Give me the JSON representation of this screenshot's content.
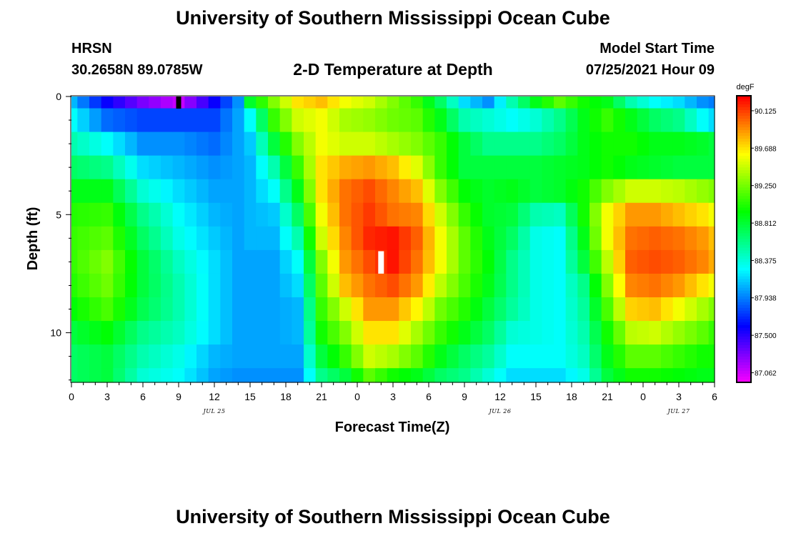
{
  "header": {
    "title_top": "University of Southern Mississippi Ocean Cube",
    "title_bottom": "University of Southern Mississippi Ocean Cube",
    "station_name": "HRSN",
    "station_coords": "30.2658N  89.0785W",
    "chart_title": "2-D Temperature at Depth",
    "model_start_label": "Model Start Time",
    "model_start_value": "07/25/2021 Hour 09"
  },
  "chart_data": {
    "type": "heatmap",
    "title": "2-D Temperature at Depth",
    "xlabel": "Forecast Time(Z)",
    "ylabel": "Depth (ft)",
    "colorbar_label": "degF",
    "x_hours": [
      0,
      1,
      2,
      3,
      4,
      5,
      6,
      7,
      8,
      9,
      10,
      11,
      12,
      13,
      14,
      15,
      16,
      17,
      18,
      19,
      20,
      21,
      22,
      23,
      24,
      25,
      26,
      27,
      28,
      29,
      30,
      31,
      32,
      33,
      34,
      35,
      36,
      37,
      38,
      39,
      40,
      41,
      42,
      43,
      44,
      45,
      46,
      47,
      48,
      49,
      50,
      51,
      52,
      53,
      54
    ],
    "x_tick_labels": [
      "0",
      "3",
      "6",
      "9",
      "12",
      "15",
      "18",
      "21",
      "0",
      "3",
      "6",
      "9",
      "12",
      "15",
      "18",
      "21",
      "0",
      "3",
      "6"
    ],
    "date_labels": [
      {
        "text": "JUL 25",
        "hour": 12
      },
      {
        "text": "JUL 26",
        "hour": 36
      },
      {
        "text": "JUL 27",
        "hour": 51
      }
    ],
    "y_depth_ft": [
      0,
      1,
      2,
      3,
      4,
      5,
      6,
      7,
      8,
      9,
      10,
      11,
      12
    ],
    "y_tick_labels": [
      "0",
      "5",
      "10"
    ],
    "xlim_hours": [
      0,
      54
    ],
    "ylim_ft": [
      0,
      12.1
    ],
    "colorbar_ticks": [
      "87.062",
      "87.500",
      "87.938",
      "88.375",
      "88.812",
      "89.250",
      "89.688",
      "90.125"
    ],
    "color_range": [
      86.95,
      90.3
    ],
    "marker_model_start_hour": 9,
    "marker_current_hour": 26,
    "anchors": [
      {
        "h": 0,
        "v": [
          88.1,
          88.3,
          88.5,
          88.7,
          88.9,
          89.05,
          89.1,
          89.1,
          89.05,
          88.95,
          88.8,
          88.7,
          88.7
        ]
      },
      {
        "h": 3,
        "v": [
          87.6,
          87.9,
          88.3,
          88.6,
          88.9,
          89.1,
          89.2,
          89.3,
          89.25,
          89.15,
          88.95,
          88.8,
          88.8
        ]
      },
      {
        "h": 6,
        "v": [
          87.3,
          87.8,
          88.0,
          88.2,
          88.4,
          88.6,
          88.7,
          88.8,
          88.8,
          88.75,
          88.6,
          88.5,
          88.4
        ]
      },
      {
        "h": 9,
        "v": [
          87.1,
          87.8,
          88.0,
          88.1,
          88.2,
          88.3,
          88.35,
          88.45,
          88.5,
          88.5,
          88.45,
          88.35,
          88.3
        ]
      },
      {
        "h": 12,
        "v": [
          87.6,
          87.8,
          87.9,
          88.0,
          88.05,
          88.1,
          88.15,
          88.2,
          88.2,
          88.2,
          88.2,
          88.1,
          88.05
        ]
      },
      {
        "h": 14,
        "v": [
          88.0,
          88.05,
          88.05,
          88.05,
          88.05,
          88.05,
          88.05,
          88.05,
          88.05,
          88.05,
          88.05,
          88.05,
          88.0
        ]
      },
      {
        "h": 15,
        "v": [
          88.85,
          88.3,
          88.15,
          88.1,
          88.1,
          88.1,
          88.1,
          88.05,
          88.05,
          88.05,
          88.05,
          88.05,
          88.0
        ]
      },
      {
        "h": 17,
        "v": [
          89.3,
          89.1,
          88.8,
          88.5,
          88.3,
          88.15,
          88.1,
          88.05,
          88.05,
          88.05,
          88.05,
          88.05,
          88.0
        ]
      },
      {
        "h": 19,
        "v": [
          89.7,
          89.5,
          89.3,
          89.1,
          88.9,
          88.7,
          88.5,
          88.3,
          88.2,
          88.1,
          88.1,
          88.05,
          88.0
        ]
      },
      {
        "h": 21,
        "v": [
          89.8,
          89.6,
          89.6,
          89.7,
          89.7,
          89.6,
          89.5,
          89.3,
          89.2,
          89.1,
          89.0,
          88.8,
          88.6
        ]
      },
      {
        "h": 23,
        "v": [
          89.6,
          89.4,
          89.5,
          89.85,
          90.0,
          90.0,
          89.95,
          89.9,
          89.8,
          89.5,
          89.3,
          89.1,
          88.8
        ]
      },
      {
        "h": 25,
        "v": [
          89.5,
          89.35,
          89.5,
          89.9,
          90.1,
          90.15,
          90.2,
          90.1,
          90.0,
          89.9,
          89.7,
          89.5,
          89.2
        ]
      },
      {
        "h": 27,
        "v": [
          89.3,
          89.25,
          89.4,
          89.8,
          89.95,
          90.0,
          90.25,
          90.25,
          90.1,
          89.9,
          89.7,
          89.4,
          89.0
        ]
      },
      {
        "h": 29,
        "v": [
          89.1,
          89.2,
          89.3,
          89.55,
          89.8,
          89.95,
          90.05,
          90.0,
          89.9,
          89.65,
          89.4,
          89.2,
          88.9
        ]
      },
      {
        "h": 31,
        "v": [
          88.7,
          88.9,
          89.1,
          89.1,
          89.3,
          89.5,
          89.6,
          89.6,
          89.45,
          89.25,
          89.1,
          88.9,
          88.7
        ]
      },
      {
        "h": 33,
        "v": [
          88.2,
          88.5,
          88.8,
          88.8,
          88.95,
          89.1,
          89.2,
          89.2,
          89.15,
          89.05,
          88.9,
          88.7,
          88.6
        ]
      },
      {
        "h": 35,
        "v": [
          88.0,
          88.4,
          88.6,
          88.8,
          88.85,
          88.85,
          88.9,
          88.95,
          88.9,
          88.8,
          88.7,
          88.55,
          88.4
        ]
      },
      {
        "h": 37,
        "v": [
          88.5,
          88.3,
          88.6,
          88.8,
          88.9,
          88.8,
          88.7,
          88.6,
          88.6,
          88.55,
          88.4,
          88.3,
          88.2
        ]
      },
      {
        "h": 39,
        "v": [
          88.9,
          88.4,
          88.6,
          88.8,
          88.8,
          88.5,
          88.35,
          88.35,
          88.35,
          88.35,
          88.35,
          88.3,
          88.2
        ]
      },
      {
        "h": 41,
        "v": [
          89.2,
          88.6,
          88.7,
          88.85,
          88.85,
          88.45,
          88.3,
          88.3,
          88.3,
          88.3,
          88.3,
          88.3,
          88.2
        ]
      },
      {
        "h": 43,
        "v": [
          89.0,
          88.9,
          88.9,
          88.9,
          89.0,
          89.0,
          88.9,
          88.8,
          88.6,
          88.55,
          88.5,
          88.45,
          88.35
        ]
      },
      {
        "h": 45,
        "v": [
          88.9,
          89.1,
          89.0,
          89.0,
          89.3,
          89.6,
          89.6,
          89.45,
          89.3,
          89.15,
          89.0,
          88.9,
          88.8
        ]
      },
      {
        "h": 47,
        "v": [
          88.5,
          88.9,
          89.0,
          88.9,
          89.5,
          89.9,
          90.0,
          90.05,
          89.95,
          89.75,
          89.45,
          89.2,
          89.0
        ]
      },
      {
        "h": 49,
        "v": [
          88.3,
          88.7,
          88.9,
          88.85,
          89.5,
          89.9,
          90.05,
          90.1,
          90.0,
          89.8,
          89.5,
          89.2,
          89.0
        ]
      },
      {
        "h": 51,
        "v": [
          88.2,
          88.6,
          88.9,
          88.8,
          89.45,
          89.8,
          90.0,
          90.05,
          89.9,
          89.6,
          89.35,
          89.1,
          88.95
        ]
      },
      {
        "h": 53,
        "v": [
          88.0,
          88.3,
          88.85,
          88.8,
          89.35,
          89.7,
          89.9,
          89.95,
          89.7,
          89.4,
          89.2,
          89.0,
          88.9
        ]
      },
      {
        "h": 54,
        "v": [
          87.95,
          88.2,
          88.8,
          88.8,
          89.3,
          89.6,
          89.8,
          89.85,
          89.6,
          89.3,
          89.1,
          89.0,
          88.9
        ]
      }
    ]
  }
}
